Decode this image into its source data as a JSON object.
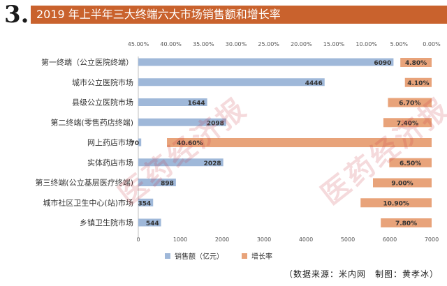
{
  "header": {
    "number": "3.",
    "title": "2019 年上半年三大终端六大市场销售额和增长率"
  },
  "source": "（数据来源：米内网　制图：黄孝冰）",
  "watermark": "医药经济报",
  "colors": {
    "sales": "#9fb8d9",
    "growth": "#e8a37a",
    "title_bg": "#c9622d"
  },
  "chart_data": {
    "type": "bar",
    "orientation": "horizontal",
    "categories": [
      "第一终端（公立医院终端）",
      "城市公立医院市场",
      "县级公立医院市场",
      "第二终端(零售药店终端)",
      "网上药店市场",
      "实体药店市场",
      "第三终端(公立基层医疗终端)",
      "城市社区卫生中心(站)市场",
      "乡镇卫生院市场"
    ],
    "series": [
      {
        "name": "销售额（亿元）",
        "axis": "bottom",
        "values": [
          6090,
          4446,
          1644,
          2098,
          70,
          2028,
          898,
          354,
          544
        ],
        "labels": [
          "6090",
          "4446",
          "1644",
          "2098",
          "70",
          "2028",
          "898",
          "354",
          "544"
        ]
      },
      {
        "name": "增长率",
        "axis": "top-reversed",
        "values": [
          4.8,
          4.1,
          6.7,
          7.4,
          40.6,
          6.5,
          9.0,
          10.9,
          7.8
        ],
        "labels": [
          "4.80%",
          "4.10%",
          "6.70%",
          "7.40%",
          "40.60%",
          "6.50%",
          "9.00%",
          "10.90%",
          "7.80%"
        ]
      }
    ],
    "x_bottom": {
      "ticks": [
        "0",
        "1000",
        "2000",
        "3000",
        "4000",
        "5000",
        "6000",
        "7000"
      ],
      "range": [
        0,
        7000
      ]
    },
    "x_top": {
      "ticks": [
        "45.00%",
        "40.00%",
        "35.00%",
        "30.00%",
        "25.00%",
        "20.00%",
        "15.00%",
        "10.00%",
        "5.00%",
        "0.00%"
      ],
      "range": [
        45,
        0
      ],
      "reversed": true
    },
    "legend": {
      "position": "bottom",
      "items": [
        "销售额（亿元）",
        "增长率"
      ]
    },
    "grid": false
  }
}
